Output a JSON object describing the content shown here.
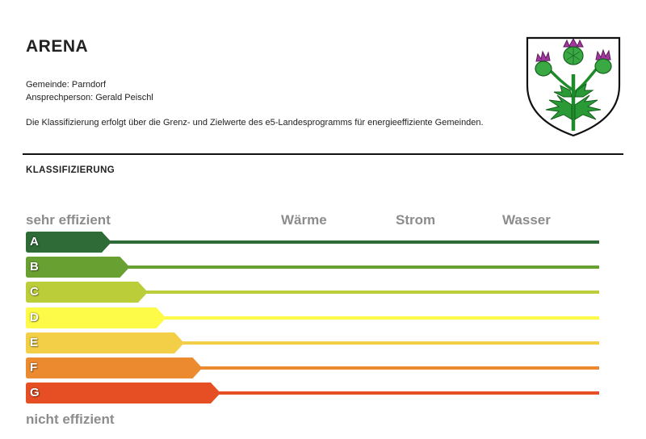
{
  "header": {
    "title": "ARENA",
    "gemeinde": "Gemeinde: Parndorf",
    "ansprechperson": "Ansprechperson: Gerald Peischl",
    "description": "Die Klassifizierung erfolgt über die Grenz- und Zielwerte des e5-Landesprogramms für energieeffiziente Gemeinden."
  },
  "crest": {
    "icon": "thistle-coat-of-arms-icon"
  },
  "classification": {
    "heading": "KLASSIFIZIERUNG",
    "top_label": "sehr effizient",
    "bottom_label": "nicht effizient",
    "columns": [
      "Wärme",
      "Strom",
      "Wasser"
    ],
    "grades": [
      {
        "letter": "A",
        "color": "#2e6b37"
      },
      {
        "letter": "B",
        "color": "#68a032"
      },
      {
        "letter": "C",
        "color": "#bccd3a"
      },
      {
        "letter": "D",
        "color": "#fdfb47"
      },
      {
        "letter": "E",
        "color": "#f3cf47"
      },
      {
        "letter": "F",
        "color": "#ec8a30"
      },
      {
        "letter": "G",
        "color": "#e64f24"
      }
    ]
  }
}
